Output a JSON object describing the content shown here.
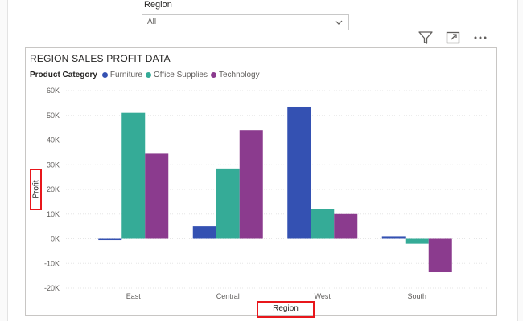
{
  "slicer": {
    "label": "Region",
    "value": "All"
  },
  "toolbar": {
    "filter_icon": "filter-icon",
    "focus_icon": "focus-mode-icon",
    "more_icon": "more-options-icon",
    "more_glyph": "···"
  },
  "chart_data": {
    "type": "bar",
    "title": "REGION SALES PROFIT DATA",
    "legend_title": "Product Category",
    "legend_position": "top-left",
    "xlabel": "Region",
    "ylabel": "Profit",
    "categories": [
      "East",
      "Central",
      "West",
      "South"
    ],
    "series": [
      {
        "name": "Furniture",
        "color": "#3451b2",
        "values": [
          -500,
          5000,
          53500,
          1000
        ]
      },
      {
        "name": "Office Supplies",
        "color": "#35ab97",
        "values": [
          51000,
          28500,
          12000,
          -2000
        ]
      },
      {
        "name": "Technology",
        "color": "#8b3b8e",
        "values": [
          34500,
          44000,
          10000,
          -13500
        ]
      }
    ],
    "ylim": [
      -20000,
      60000
    ],
    "yticks": [
      {
        "value": 60000,
        "label": "60K"
      },
      {
        "value": 50000,
        "label": "50K"
      },
      {
        "value": 40000,
        "label": "40K"
      },
      {
        "value": 30000,
        "label": "30K"
      },
      {
        "value": 20000,
        "label": "20K"
      },
      {
        "value": 10000,
        "label": "10K"
      },
      {
        "value": 0,
        "label": "0K"
      },
      {
        "value": -10000,
        "label": "-10K"
      },
      {
        "value": -20000,
        "label": "-20K"
      }
    ],
    "grid": true
  }
}
